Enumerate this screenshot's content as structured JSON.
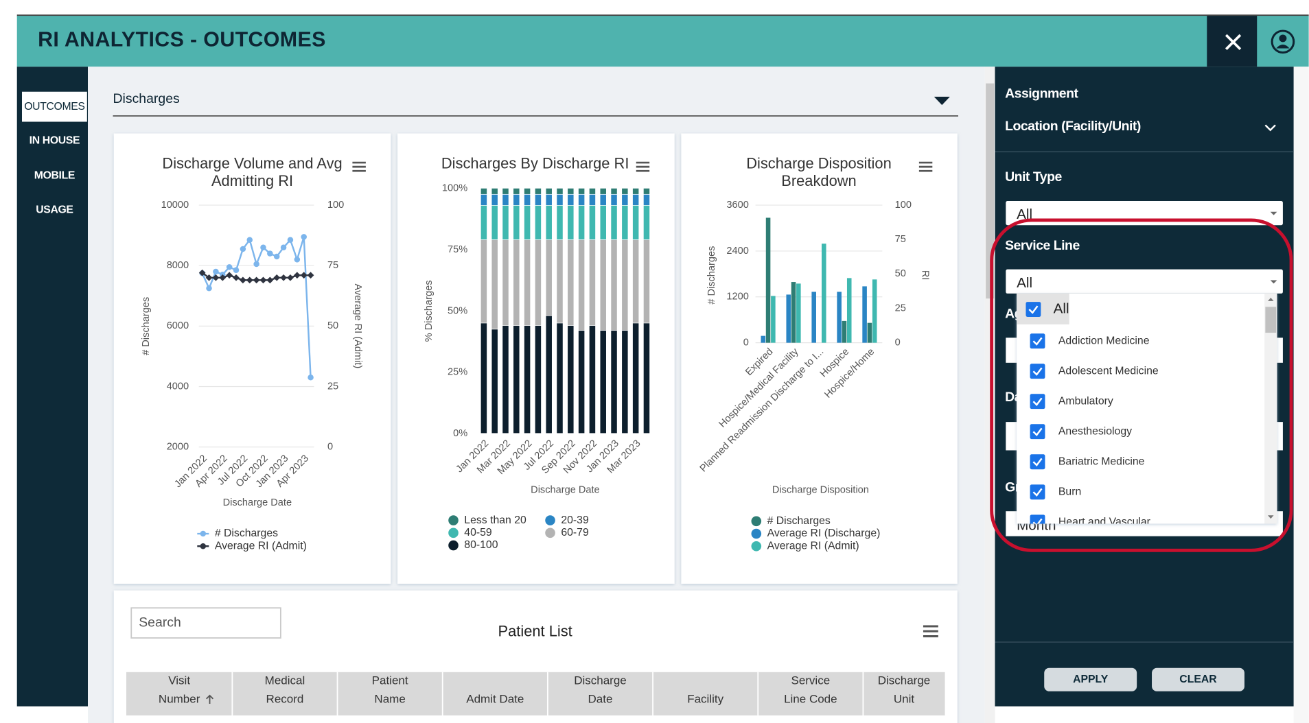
{
  "header": {
    "title": "RI ANALYTICS - OUTCOMES"
  },
  "nav": [
    "OUTCOMES",
    "IN HOUSE",
    "MOBILE",
    "USAGE"
  ],
  "section": "Discharges",
  "charts": [
    {
      "type": "line",
      "title": [
        "Discharge Volume and Avg",
        "Admitting RI"
      ],
      "categories": [
        "Jan 2022",
        null,
        null,
        "Apr 2022",
        null,
        null,
        "Jul 2022",
        null,
        null,
        "Oct 2022",
        null,
        null,
        "Jan 2023",
        null,
        null,
        "Apr 2023",
        null
      ],
      "x_label": "Discharge Date",
      "y_label": "# Discharges",
      "y2_label": "Average RI (Admit)",
      "ylim": [
        2000,
        10000
      ],
      "yticks": [
        2000,
        4000,
        6000,
        8000,
        10000
      ],
      "y2lim": [
        0,
        100
      ],
      "y2ticks": [
        0,
        25,
        50,
        75,
        100
      ],
      "grid": true,
      "series": [
        {
          "name": "# Discharges",
          "color": "#7cb5ec",
          "values": [
            7750,
            7250,
            7800,
            7700,
            7950,
            7850,
            8550,
            8850,
            8050,
            8600,
            8400,
            8300,
            8600,
            8850,
            8200,
            8950,
            4300
          ]
        },
        {
          "name": "Average RI (Admit)",
          "color": "#2f3440",
          "axis": "y2",
          "values": [
            72,
            70,
            70,
            70,
            71,
            70,
            69,
            69,
            69,
            69,
            69,
            70,
            70,
            70,
            71,
            71,
            71
          ]
        }
      ]
    },
    {
      "type": "stacked_bar",
      "title": [
        "Discharges By Discharge RI"
      ],
      "categories": [
        "Jan 2022",
        null,
        "Mar 2022",
        null,
        "May 2022",
        null,
        "Jul 2022",
        null,
        "Sep 2022",
        null,
        "Nov 2022",
        null,
        "Jan 2023",
        null,
        "Mar 2023",
        null
      ],
      "x_label": "Discharge Date",
      "y_label": "% Discharges",
      "ylim": [
        0,
        100
      ],
      "yticks": [
        {
          "value": 0,
          "label": "0%"
        },
        {
          "value": 25,
          "label": "25%"
        },
        {
          "value": 50,
          "label": "50%"
        },
        {
          "value": 75,
          "label": "75%"
        },
        {
          "value": 100,
          "label": "100%"
        }
      ],
      "grid": false,
      "series": [
        {
          "name": "Less than 20",
          "color": "#2e7d74",
          "values": [
            2.5,
            2.5,
            2.5,
            2.5,
            2.5,
            2.5,
            2.5,
            2.5,
            2.5,
            2.5,
            2.5,
            2.5,
            2.5,
            2.5,
            2.5,
            2.5
          ]
        },
        {
          "name": "20-39",
          "color": "#2a85c4",
          "values": [
            4.5,
            4.5,
            4.5,
            4.5,
            4.5,
            4.5,
            4.5,
            4.5,
            4.5,
            4.5,
            4.5,
            4.5,
            4.5,
            4.5,
            4.5,
            4.5
          ]
        },
        {
          "name": "40-59",
          "color": "#3fb8b0",
          "values": [
            14,
            14,
            14,
            14,
            14,
            14,
            14,
            14,
            14,
            14,
            14,
            14,
            14,
            14,
            14,
            14
          ]
        },
        {
          "name": "60-79",
          "color": "#b3b3b3",
          "values": [
            34,
            36.5,
            35,
            35,
            35,
            35,
            31,
            34,
            35,
            37,
            35,
            37,
            37,
            37,
            34,
            34
          ]
        },
        {
          "name": "80-100",
          "color": "#0d1f2d",
          "values": [
            45,
            42.5,
            44,
            44,
            44,
            44,
            48,
            45,
            44,
            42,
            44,
            42,
            42,
            42,
            45,
            45
          ]
        }
      ]
    },
    {
      "type": "grouped_bar",
      "title": [
        "Discharge Disposition",
        "Breakdown"
      ],
      "categories": [
        "Expired",
        "Hospice/Medical Facility",
        "Planned Readmission Discharge to I...",
        "Hospice",
        "Hospice/Home"
      ],
      "x_label": "Discharge Disposition",
      "y_label": "# Discharges",
      "y2_label": "RI",
      "ylim": [
        0,
        3600
      ],
      "yticks": [
        0,
        1200,
        2400,
        3600
      ],
      "y2lim": [
        0,
        100
      ],
      "y2ticks": [
        0,
        25,
        50,
        75,
        100
      ],
      "grid": true,
      "series": [
        {
          "name": "# Discharges",
          "color": "#2e7d74",
          "values": [
            3270,
            1590,
            0,
            570,
            520
          ]
        },
        {
          "name": "Average RI (Discharge)",
          "color": "#2a85c4",
          "axis": "y2",
          "values": [
            5,
            35,
            37,
            37,
            41
          ]
        },
        {
          "name": "Average RI (Admit)",
          "color": "#3fb8b0",
          "axis": "y2",
          "values": [
            34,
            43,
            72,
            47,
            46
          ]
        }
      ]
    }
  ],
  "patient_list": {
    "search": "Search",
    "title": "Patient List",
    "columns": [
      [
        "Visit",
        "Number"
      ],
      [
        "Medical",
        "Record"
      ],
      [
        "Patient",
        "Name"
      ],
      [
        "Admit Date"
      ],
      [
        "Discharge",
        "Date"
      ],
      [
        "Facility"
      ],
      [
        "Service",
        "Line Code"
      ],
      [
        "Discharge",
        "Unit"
      ]
    ]
  },
  "filters": {
    "assignment": "Assignment",
    "location": "Location (Facility/Unit)",
    "unit_type": {
      "label": "Unit Type",
      "value": "All"
    },
    "service_line": {
      "label": "Service Line",
      "value": "All",
      "options": [
        "All",
        "Addiction Medicine",
        "Adolescent Medicine",
        "Ambulatory",
        "Anesthesiology",
        "Bariatric Medicine",
        "Burn",
        "Heart and Vascular"
      ]
    },
    "covered_labels": [
      "Ag",
      "Da",
      "Gr"
    ],
    "group_value": "Month",
    "buttons": [
      "APPLY",
      "CLEAR"
    ]
  }
}
